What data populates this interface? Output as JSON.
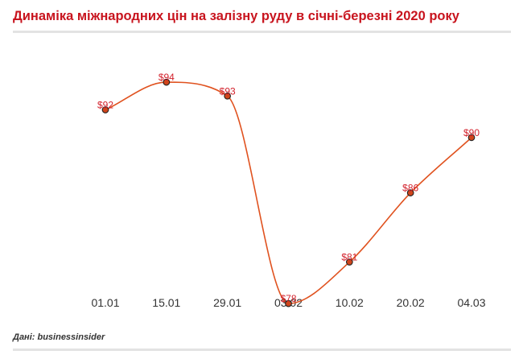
{
  "title": "Динаміка міжнародних цін на залізну руду в січні-березні 2020 року",
  "source": "Дані: businessinsider",
  "colors": {
    "title": "#c8141e",
    "line": "#e0521f",
    "marker_fill": "#d0451b",
    "marker_stroke": "#222222",
    "data_label": "#d21f2a",
    "tick_label": "#333333",
    "rule": "#e3e3e3"
  },
  "chart_data": {
    "type": "line",
    "title": "Динаміка міжнародних цін на залізну руду в січні-березні 2020 року",
    "xlabel": "",
    "ylabel": "",
    "categories": [
      "01.01",
      "15.01",
      "29.01",
      "03.02",
      "10.02",
      "20.02",
      "04.03"
    ],
    "series": [
      {
        "values": [
          92,
          94,
          93,
          78,
          81,
          86,
          90
        ],
        "labels": [
          "$92",
          "$94",
          "$93",
          "$78",
          "$81",
          "$86",
          "$90"
        ]
      }
    ],
    "ylim": [
      77.6,
      96.1
    ],
    "grid": false,
    "legend": "none",
    "smooth": true,
    "markers": true
  }
}
